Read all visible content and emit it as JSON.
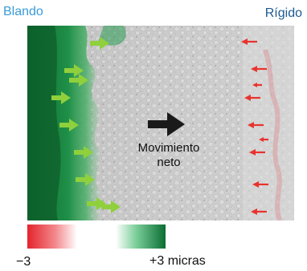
{
  "labels": {
    "soft": "Blando",
    "rigid": "Rígido"
  },
  "caption": {
    "line1": "Movimiento",
    "line2": "neto"
  },
  "scale": {
    "min_label": "−3",
    "max_label": "+3  micras"
  },
  "colors": {
    "soft_label": "#3a9bd8",
    "rigid_label": "#1c5a92",
    "soft_arrow": "#8fd03c",
    "rigid_arrow": "#e8332e",
    "net_arrow": "#1a1a1a",
    "green_edge": "#0f7a3a",
    "red_edge": "#e0555a"
  },
  "arrow_counts": {
    "soft_side": 9,
    "rigid_side": 9
  }
}
